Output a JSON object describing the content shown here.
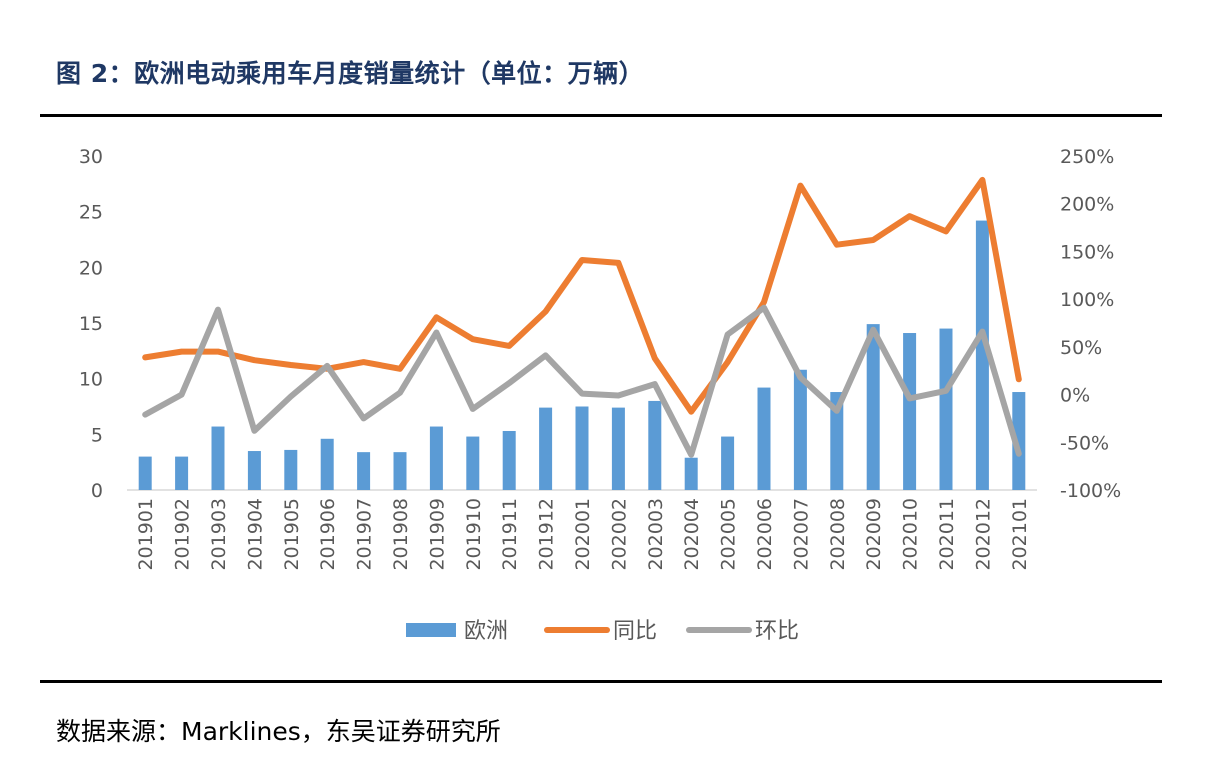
{
  "title": "图 2：欧洲电动乘用车月度销量统计（单位：万辆）",
  "source": "数据来源：Marklines，东吴证券研究所",
  "chart_data": {
    "type": "bar",
    "categories": [
      "201901",
      "201902",
      "201903",
      "201904",
      "201905",
      "201906",
      "201907",
      "201908",
      "201909",
      "201910",
      "201911",
      "201912",
      "202001",
      "202002",
      "202003",
      "202004",
      "202005",
      "202006",
      "202007",
      "202008",
      "202009",
      "202010",
      "202011",
      "202012",
      "202101"
    ],
    "series": [
      {
        "name": "欧洲",
        "type": "bar",
        "axis": "left",
        "color": "#5b9bd5",
        "values": [
          3.0,
          3.0,
          5.7,
          3.5,
          3.6,
          4.6,
          3.4,
          3.4,
          5.7,
          4.8,
          5.3,
          7.4,
          7.5,
          7.4,
          8.0,
          2.9,
          4.8,
          9.2,
          10.8,
          8.8,
          14.9,
          14.1,
          14.5,
          24.2,
          8.8
        ]
      },
      {
        "name": "同比",
        "type": "line",
        "axis": "right",
        "color": "#ed7d31",
        "values": [
          39,
          45,
          45,
          36,
          31,
          27,
          34,
          27,
          81,
          58,
          51,
          87,
          141,
          138,
          38,
          -18,
          34,
          97,
          219,
          157,
          162,
          187,
          171,
          225,
          16
        ]
      },
      {
        "name": "环比",
        "type": "line",
        "axis": "right",
        "color": "#a5a5a5",
        "values": [
          -21,
          0,
          89,
          -38,
          -2,
          30,
          -25,
          2,
          65,
          -15,
          12,
          41,
          1,
          -1,
          11,
          -63,
          63,
          91,
          18,
          -17,
          68,
          -4,
          4,
          66,
          -62
        ]
      }
    ],
    "y_left": {
      "ylim": [
        0,
        30
      ],
      "ticks": [
        "0",
        "5",
        "10",
        "15",
        "20",
        "25",
        "30"
      ]
    },
    "y_right": {
      "ylim": [
        -100,
        250
      ],
      "ticks": [
        "-100%",
        "-50%",
        "0%",
        "50%",
        "100%",
        "150%",
        "200%",
        "250%"
      ]
    },
    "legend": [
      "欧洲",
      "同比",
      "环比"
    ],
    "legend_position": "bottom"
  }
}
